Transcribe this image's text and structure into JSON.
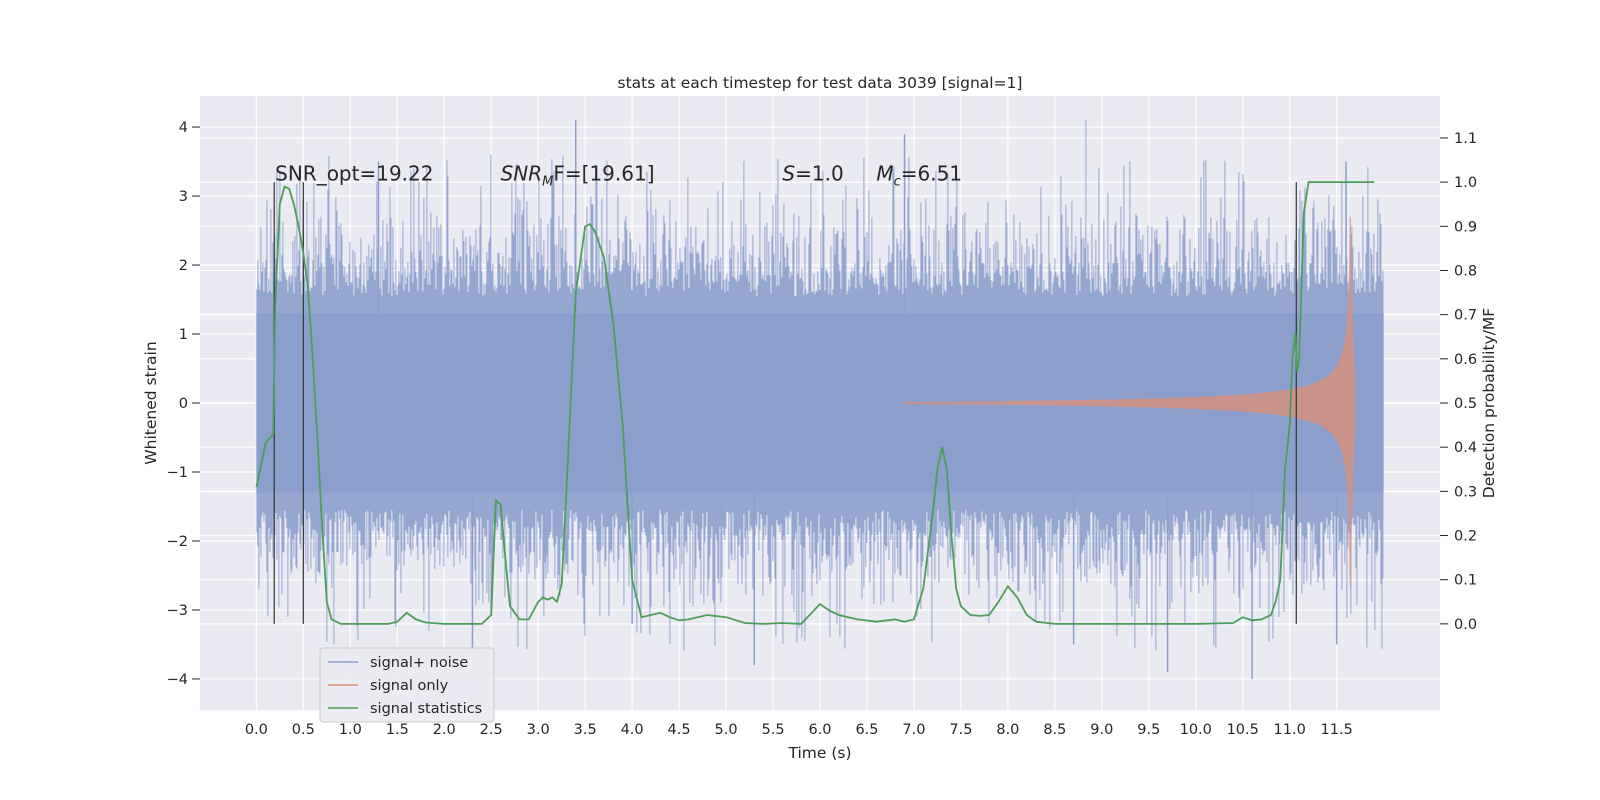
{
  "chart_data": {
    "type": "line",
    "title": "stats at each timestep for test data 3039 [signal=1]",
    "xlabel": "Time (s)",
    "ylabel": "Whitened strain",
    "y2label": "Detection probability/MF",
    "xlim": [
      -0.6,
      12.6
    ],
    "ylim": [
      -4.45,
      4.45
    ],
    "y2lim": [
      -0.195,
      1.195
    ],
    "x_ticks": [
      0.0,
      0.5,
      1.0,
      1.5,
      2.0,
      2.5,
      3.0,
      3.5,
      4.0,
      4.5,
      5.0,
      5.5,
      6.0,
      6.5,
      7.0,
      7.5,
      8.0,
      8.5,
      9.0,
      9.5,
      10.0,
      10.5,
      11.0,
      11.5
    ],
    "x_tick_labels": [
      "0.0",
      "0.5",
      "1.0",
      "1.5",
      "2.0",
      "2.5",
      "3.0",
      "3.5",
      "4.0",
      "4.5",
      "5.0",
      "5.5",
      "6.0",
      "6.5",
      "7.0",
      "7.5",
      "8.0",
      "8.5",
      "9.0",
      "9.5",
      "10.0",
      "10.5",
      "11.0",
      "11.5"
    ],
    "y_ticks": [
      4,
      3,
      2,
      1,
      0,
      -1,
      -2,
      -3,
      -4
    ],
    "y_tick_labels": [
      "4",
      "3",
      "2",
      "1",
      "0",
      "−1",
      "−2",
      "−3",
      "−4"
    ],
    "y2_ticks": [
      1.1,
      1.0,
      0.9,
      0.8,
      0.7,
      0.6,
      0.5,
      0.4,
      0.3,
      0.2,
      0.1,
      0.0
    ],
    "y2_tick_labels": [
      "1.1",
      "1.0",
      "0.9",
      "0.8",
      "0.7",
      "0.6",
      "0.5",
      "0.4",
      "0.3",
      "0.2",
      "0.1",
      "0.0"
    ],
    "grid": true,
    "legend_position": "lower-left",
    "annotations": [
      {
        "plain": "SNR_opt=19.22",
        "x": 0.2,
        "y": 3.33
      },
      {
        "sym": "SNR",
        "sub": "M",
        "tail": "F=[19.61]",
        "x": 2.6,
        "y": 3.33
      },
      {
        "sym": "S",
        "tail": "=1.0",
        "x": 5.6,
        "y": 3.33
      },
      {
        "sym": "M",
        "sub": "c",
        "tail": "=6.51",
        "x": 6.6,
        "y": 3.33
      }
    ],
    "vlines": [
      {
        "x": 0.19,
        "y_from": -0.0,
        "y_to": 1.0
      },
      {
        "x": 0.5,
        "y_from": -0.0,
        "y_to": 1.0
      },
      {
        "x": 11.07,
        "y_from": -0.0,
        "y_to": 1.0
      }
    ],
    "series": [
      {
        "name": "signal+ noise",
        "color": "#8c9fcc",
        "axis": "left",
        "kind": "noise",
        "x_range": [
          0.0,
          12.0
        ],
        "envelope_sigma": 1.0,
        "extreme_range": [
          -4.1,
          4.1
        ]
      },
      {
        "name": "signal only",
        "color": "#dd8f77",
        "axis": "left",
        "kind": "chirp",
        "x_range": [
          6.9,
          12.0
        ],
        "coalescence_time": 11.65,
        "peak_amplitude": 2.7,
        "amplitude_at_11": 0.55,
        "amplitude_at_7": 0.02
      },
      {
        "name": "signal statistics",
        "color": "#4c9e58",
        "axis": "right",
        "kind": "line",
        "x": [
          0.0,
          0.1,
          0.18,
          0.2,
          0.25,
          0.3,
          0.35,
          0.4,
          0.45,
          0.5,
          0.55,
          0.6,
          0.65,
          0.7,
          0.75,
          0.8,
          0.9,
          1.0,
          1.2,
          1.4,
          1.5,
          1.6,
          1.7,
          1.8,
          2.0,
          2.2,
          2.4,
          2.5,
          2.55,
          2.6,
          2.65,
          2.7,
          2.8,
          2.9,
          3.0,
          3.05,
          3.1,
          3.15,
          3.2,
          3.25,
          3.3,
          3.4,
          3.5,
          3.55,
          3.6,
          3.7,
          3.8,
          3.9,
          4.0,
          4.1,
          4.2,
          4.3,
          4.4,
          4.5,
          4.6,
          4.8,
          5.0,
          5.2,
          5.4,
          5.6,
          5.8,
          6.0,
          6.1,
          6.2,
          6.3,
          6.4,
          6.6,
          6.8,
          6.9,
          7.0,
          7.1,
          7.2,
          7.25,
          7.3,
          7.35,
          7.4,
          7.45,
          7.5,
          7.6,
          7.7,
          7.8,
          7.9,
          8.0,
          8.1,
          8.2,
          8.3,
          8.5,
          9.0,
          9.5,
          10.0,
          10.4,
          10.5,
          10.6,
          10.7,
          10.8,
          10.85,
          10.9,
          10.95,
          11.0,
          11.03,
          11.06,
          11.08,
          11.1,
          11.15,
          11.2,
          11.3,
          11.5,
          11.7,
          11.9
        ],
        "y": [
          0.31,
          0.41,
          0.43,
          0.72,
          0.95,
          0.99,
          0.985,
          0.95,
          0.9,
          0.84,
          0.76,
          0.6,
          0.42,
          0.22,
          0.05,
          0.01,
          0.0,
          0.0,
          0.0,
          0.0,
          0.005,
          0.025,
          0.01,
          0.003,
          0.0,
          0.0,
          0.0,
          0.02,
          0.28,
          0.27,
          0.15,
          0.04,
          0.01,
          0.01,
          0.05,
          0.06,
          0.055,
          0.06,
          0.05,
          0.09,
          0.3,
          0.75,
          0.9,
          0.905,
          0.89,
          0.83,
          0.68,
          0.45,
          0.1,
          0.015,
          0.02,
          0.025,
          0.015,
          0.008,
          0.01,
          0.02,
          0.015,
          0.002,
          0.0,
          0.002,
          0.0,
          0.045,
          0.03,
          0.02,
          0.015,
          0.01,
          0.005,
          0.01,
          0.005,
          0.01,
          0.08,
          0.25,
          0.35,
          0.4,
          0.35,
          0.2,
          0.08,
          0.04,
          0.02,
          0.018,
          0.02,
          0.05,
          0.085,
          0.06,
          0.02,
          0.005,
          0.0,
          0.0,
          0.0,
          0.0,
          0.002,
          0.015,
          0.008,
          0.01,
          0.02,
          0.05,
          0.1,
          0.35,
          0.45,
          0.6,
          0.66,
          0.57,
          0.6,
          0.93,
          1.0,
          1.0,
          1.0,
          1.0,
          1.0
        ]
      }
    ]
  }
}
